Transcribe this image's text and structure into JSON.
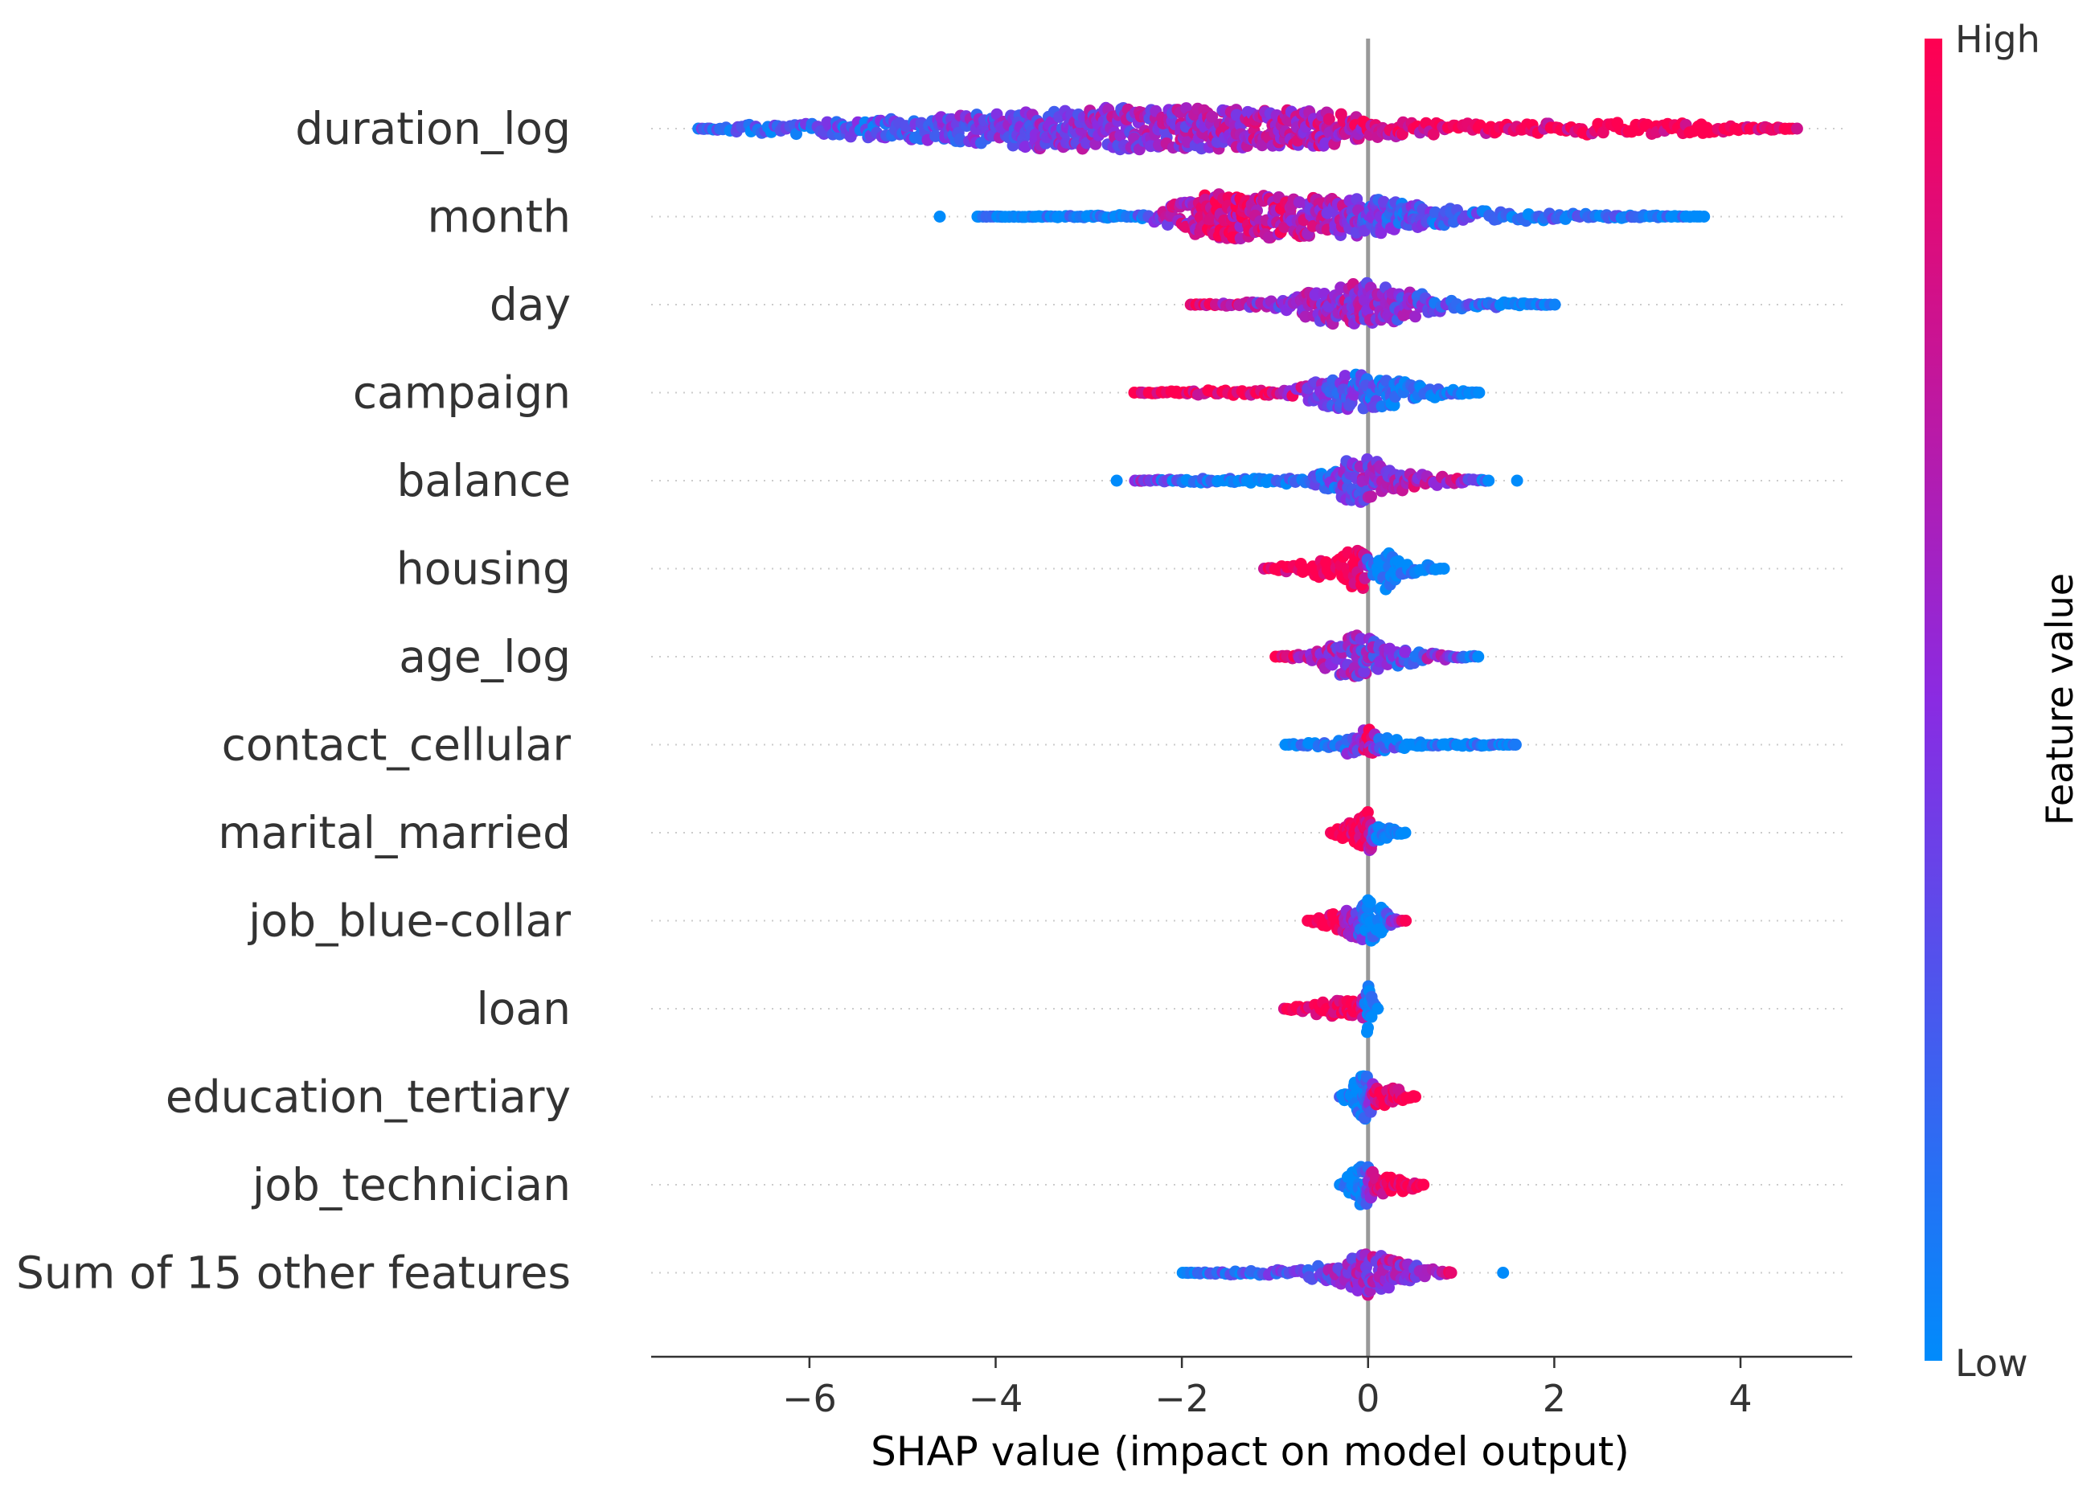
{
  "chart_data": {
    "type": "scatter",
    "subtype": "shap-beeswarm",
    "xlabel": "SHAP value (impact on model output)",
    "xlim": [
      -7.7,
      5.2
    ],
    "xticks": [
      -6,
      -4,
      -2,
      0,
      2,
      4
    ],
    "xtick_labels": [
      "−6",
      "−4",
      "−2",
      "0",
      "2",
      "4"
    ],
    "zero_line": 0,
    "colorbar": {
      "title": "Feature value",
      "high_label": "High",
      "low_label": "Low",
      "low_color": "#008bfb",
      "mid_color": "#8a2be2",
      "high_color": "#ff0051"
    },
    "features": [
      {
        "name": "duration_log",
        "min": -7.2,
        "max": 4.6,
        "outliers": [],
        "dist": [
          [
            -7.2,
            0.0,
            0.3
          ],
          [
            -6.5,
            0.12,
            0.15
          ],
          [
            -5.5,
            0.2,
            0.25
          ],
          [
            -4.5,
            0.3,
            0.38
          ],
          [
            -3.5,
            0.48,
            0.45
          ],
          [
            -2.5,
            0.5,
            0.55
          ],
          [
            -1.5,
            0.48,
            0.62
          ],
          [
            -0.5,
            0.42,
            0.7
          ],
          [
            0.0,
            0.25,
            0.8
          ],
          [
            0.5,
            0.15,
            0.88
          ],
          [
            1.5,
            0.1,
            0.92
          ],
          [
            2.5,
            0.15,
            0.97
          ],
          [
            3.5,
            0.12,
            1.0
          ],
          [
            4.6,
            0.0,
            1.0
          ]
        ]
      },
      {
        "name": "month",
        "min": -4.2,
        "max": 3.6,
        "outliers": [
          [
            -4.6,
            0.0
          ]
        ],
        "dist": [
          [
            -4.2,
            0.0,
            0.0
          ],
          [
            -3.0,
            0.02,
            0.0
          ],
          [
            -2.4,
            0.05,
            0.1
          ],
          [
            -2.2,
            0.2,
            0.55
          ],
          [
            -1.7,
            0.55,
            0.85
          ],
          [
            -1.0,
            0.5,
            0.75
          ],
          [
            -0.3,
            0.48,
            0.6
          ],
          [
            0.0,
            0.45,
            0.35
          ],
          [
            0.5,
            0.3,
            0.28
          ],
          [
            1.0,
            0.15,
            0.22
          ],
          [
            2.0,
            0.08,
            0.15
          ],
          [
            3.0,
            0.03,
            0.05
          ],
          [
            3.6,
            0.0,
            0.0
          ]
        ]
      },
      {
        "name": "day",
        "min": -1.9,
        "max": 2.0,
        "outliers": [],
        "dist": [
          [
            -1.9,
            0.0,
            1.0
          ],
          [
            -1.4,
            0.05,
            0.7
          ],
          [
            -1.0,
            0.12,
            0.5
          ],
          [
            -0.5,
            0.4,
            0.6
          ],
          [
            -0.2,
            0.55,
            0.6
          ],
          [
            0.0,
            0.52,
            0.55
          ],
          [
            0.4,
            0.35,
            0.45
          ],
          [
            0.8,
            0.15,
            0.3
          ],
          [
            1.2,
            0.08,
            0.15
          ],
          [
            2.0,
            0.0,
            0.0
          ]
        ]
      },
      {
        "name": "campaign",
        "min": -2.5,
        "max": 1.2,
        "outliers": [],
        "dist": [
          [
            -2.5,
            0.0,
            1.0
          ],
          [
            -2.0,
            0.05,
            1.0
          ],
          [
            -1.2,
            0.06,
            0.95
          ],
          [
            -0.8,
            0.1,
            0.7
          ],
          [
            -0.4,
            0.35,
            0.4
          ],
          [
            -0.2,
            0.48,
            0.3
          ],
          [
            0.0,
            0.4,
            0.2
          ],
          [
            0.3,
            0.32,
            0.1
          ],
          [
            0.6,
            0.15,
            0.05
          ],
          [
            1.2,
            0.0,
            0.0
          ]
        ]
      },
      {
        "name": "balance",
        "min": -2.5,
        "max": 1.3,
        "outliers": [
          [
            -2.7,
            0.0
          ],
          [
            1.6,
            0.0
          ]
        ],
        "dist": [
          [
            -2.5,
            0.0,
            0.55
          ],
          [
            -2.0,
            0.04,
            0.1
          ],
          [
            -1.0,
            0.06,
            0.05
          ],
          [
            -0.5,
            0.2,
            0.15
          ],
          [
            -0.2,
            0.5,
            0.45
          ],
          [
            0.0,
            0.52,
            0.5
          ],
          [
            0.3,
            0.3,
            0.55
          ],
          [
            0.6,
            0.15,
            0.7
          ],
          [
            1.0,
            0.06,
            0.7
          ],
          [
            1.3,
            0.0,
            0.0
          ]
        ]
      },
      {
        "name": "housing",
        "min": -1.1,
        "max": 0.8,
        "outliers": [],
        "dist": [
          [
            -1.1,
            0.0,
            1.0
          ],
          [
            -0.7,
            0.15,
            1.0
          ],
          [
            -0.3,
            0.3,
            1.0
          ],
          [
            -0.05,
            0.55,
            1.0
          ],
          [
            0.05,
            0.1,
            0.0
          ],
          [
            0.15,
            0.55,
            0.0
          ],
          [
            0.4,
            0.2,
            0.0
          ],
          [
            0.8,
            0.0,
            0.0
          ]
        ]
      },
      {
        "name": "age_log",
        "min": -1.0,
        "max": 1.2,
        "outliers": [],
        "dist": [
          [
            -1.0,
            0.0,
            1.0
          ],
          [
            -0.6,
            0.1,
            0.7
          ],
          [
            -0.3,
            0.45,
            0.55
          ],
          [
            -0.1,
            0.55,
            0.5
          ],
          [
            0.2,
            0.3,
            0.4
          ],
          [
            0.5,
            0.15,
            0.25
          ],
          [
            0.8,
            0.08,
            0.7
          ],
          [
            1.2,
            0.0,
            0.0
          ]
        ]
      },
      {
        "name": "contact_cellular",
        "min": -0.9,
        "max": 1.6,
        "outliers": [],
        "dist": [
          [
            -0.9,
            0.0,
            0.0
          ],
          [
            -0.4,
            0.08,
            0.0
          ],
          [
            -0.1,
            0.3,
            0.5
          ],
          [
            0.0,
            0.55,
            0.95
          ],
          [
            0.1,
            0.2,
            0.3
          ],
          [
            0.5,
            0.06,
            0.0
          ],
          [
            0.8,
            0.02,
            0.0
          ],
          [
            1.0,
            0.04,
            0.0
          ],
          [
            1.6,
            0.0,
            0.0
          ]
        ]
      },
      {
        "name": "marital_married",
        "min": -0.4,
        "max": 0.4,
        "outliers": [],
        "dist": [
          [
            -0.4,
            0.0,
            1.0
          ],
          [
            -0.15,
            0.3,
            1.0
          ],
          [
            0.0,
            0.55,
            0.95
          ],
          [
            0.1,
            0.2,
            0.0
          ],
          [
            0.4,
            0.0,
            0.0
          ]
        ]
      },
      {
        "name": "job_blue-collar",
        "min": -0.65,
        "max": 0.4,
        "outliers": [],
        "dist": [
          [
            -0.65,
            0.0,
            1.0
          ],
          [
            -0.3,
            0.25,
            1.0
          ],
          [
            0.0,
            0.55,
            0.0
          ],
          [
            0.15,
            0.3,
            0.0
          ],
          [
            0.4,
            0.0,
            1.0
          ]
        ]
      },
      {
        "name": "loan",
        "min": -0.9,
        "max": 0.1,
        "outliers": [],
        "dist": [
          [
            -0.9,
            0.0,
            1.0
          ],
          [
            -0.5,
            0.18,
            1.0
          ],
          [
            -0.1,
            0.2,
            1.0
          ],
          [
            0.0,
            0.6,
            0.0
          ],
          [
            0.1,
            0.0,
            0.0
          ]
        ]
      },
      {
        "name": "education_tertiary",
        "min": -0.3,
        "max": 0.5,
        "outliers": [],
        "dist": [
          [
            -0.3,
            0.0,
            0.0
          ],
          [
            -0.05,
            0.55,
            0.0
          ],
          [
            0.1,
            0.25,
            1.0
          ],
          [
            0.3,
            0.2,
            1.0
          ],
          [
            0.5,
            0.0,
            1.0
          ]
        ]
      },
      {
        "name": "job_technician",
        "min": -0.3,
        "max": 0.6,
        "outliers": [],
        "dist": [
          [
            -0.3,
            0.0,
            0.0
          ],
          [
            -0.05,
            0.55,
            0.0
          ],
          [
            0.1,
            0.22,
            1.0
          ],
          [
            0.4,
            0.18,
            1.0
          ],
          [
            0.6,
            0.0,
            1.0
          ]
        ]
      },
      {
        "name": "Sum of 15 other features",
        "min": -2.0,
        "max": 0.9,
        "outliers": [
          [
            1.45,
            0.0
          ]
        ],
        "dist": [
          [
            -2.0,
            0.0,
            0.0
          ],
          [
            -1.5,
            0.04,
            0.2
          ],
          [
            -0.8,
            0.08,
            0.3
          ],
          [
            -0.3,
            0.25,
            0.5
          ],
          [
            0.0,
            0.55,
            0.6
          ],
          [
            0.3,
            0.3,
            0.6
          ],
          [
            0.7,
            0.08,
            0.5
          ],
          [
            0.9,
            0.0,
            1.0
          ]
        ]
      }
    ]
  }
}
